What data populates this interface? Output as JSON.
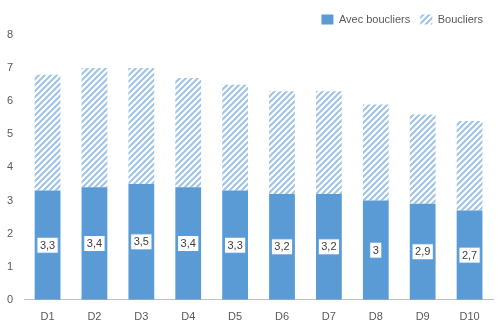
{
  "chart_data": {
    "type": "bar",
    "stacked": true,
    "categories": [
      "D1",
      "D2",
      "D3",
      "D4",
      "D5",
      "D6",
      "D7",
      "D8",
      "D9",
      "D10"
    ],
    "series": [
      {
        "name": "Avec boucliers",
        "color": "#5b9bd5",
        "data_labels": true,
        "values": [
          3.3,
          3.4,
          3.5,
          3.4,
          3.3,
          3.2,
          3.2,
          3,
          2.9,
          2.7
        ],
        "value_labels": [
          "3,3",
          "3,4",
          "3,5",
          "3,4",
          "3,3",
          "3,2",
          "3,2",
          "3",
          "2,9",
          "2,7"
        ]
      },
      {
        "name": "Boucliers",
        "color": "#9dc3e6",
        "values": [
          3.5,
          3.6,
          3.5,
          3.3,
          3.2,
          3.1,
          3.1,
          2.9,
          2.7,
          2.7
        ]
      }
    ],
    "ylim": [
      0,
      8
    ],
    "yticks": [
      0,
      1,
      2,
      3,
      4,
      5,
      6,
      7,
      8
    ],
    "grid": false,
    "legend": "top-right"
  }
}
